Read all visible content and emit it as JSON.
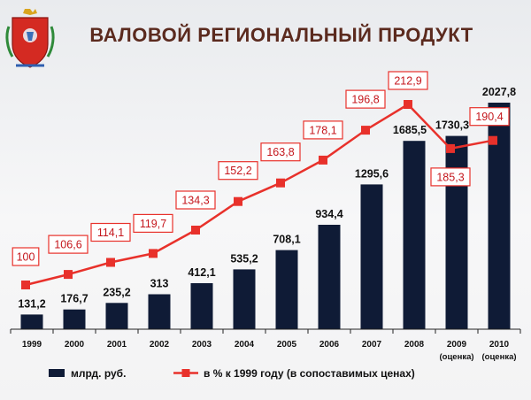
{
  "header": {
    "title": "ВАЛОВОЙ РЕГИОНАЛЬНЫЙ ПРОДУКТ",
    "emblem_icon": "coat-of-arms-icon"
  },
  "colors": {
    "bar": "#0f1b36",
    "line": "#e8312b",
    "label_border": "#e8312b",
    "label_text": "#c4161c",
    "title": "#5b2a1e"
  },
  "chart_data": {
    "type": "bar",
    "title": "ВАЛОВОЙ РЕГИОНАЛЬНЫЙ ПРОДУКТ",
    "categories": [
      "1999",
      "2000",
      "2001",
      "2002",
      "2003",
      "2004",
      "2005",
      "2006",
      "2007",
      "2008",
      "2009",
      "2010"
    ],
    "category_notes": [
      "",
      "",
      "",
      "",
      "",
      "",
      "",
      "",
      "",
      "",
      "(оценка)",
      "(оценка)"
    ],
    "series": [
      {
        "name": "млрд. руб.",
        "type": "bar",
        "values": [
          131.2,
          176.7,
          235.2,
          313,
          412.1,
          535.2,
          708.1,
          934.4,
          1295.6,
          1685.5,
          1730.3,
          2027.8
        ],
        "labels": [
          "131,2",
          "176,7",
          "235,2",
          "313",
          "412,1",
          "535,2",
          "708,1",
          "934,4",
          "1295,6",
          "1685,5",
          "1730,3",
          "2027,8"
        ]
      },
      {
        "name": "в % к 1999 году (в сопоставимых ценах)",
        "type": "line",
        "values": [
          100,
          106.6,
          114.1,
          119.7,
          134.3,
          152.2,
          163.8,
          178.1,
          196.8,
          212.9,
          185.3,
          190.4
        ],
        "labels": [
          "100",
          "106,6",
          "114,1",
          "119,7",
          "134,3",
          "152,2",
          "163,8",
          "178,1",
          "196,8",
          "212,9",
          "185,3",
          "190,4"
        ]
      }
    ],
    "legend_position": "bottom",
    "grid": false
  }
}
